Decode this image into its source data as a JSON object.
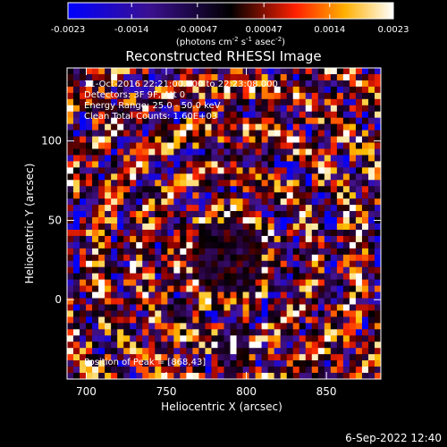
{
  "chart_data": {
    "type": "heatmap",
    "title": "Reconstructed RHESSI Image",
    "xlabel": "Heliocentric X (arcsec)",
    "ylabel": "Heliocentric Y (arcsec)",
    "xlim": [
      688,
      884
    ],
    "ylim": [
      -50,
      146
    ],
    "x_ticks": [
      "700",
      "750",
      "800",
      "850"
    ],
    "y_ticks": [
      "0",
      "50",
      "100"
    ],
    "x_tick_values": [
      700,
      750,
      800,
      850
    ],
    "y_tick_values": [
      0,
      50,
      100
    ],
    "colorbar": {
      "range": [
        -0.0023,
        0.0023
      ],
      "tick_labels": [
        "-0.0023",
        "-0.0014",
        "-0.00047",
        "0.00047",
        "0.0014",
        "0.0023"
      ],
      "tick_values": [
        -0.0023,
        -0.0014,
        -0.00047,
        0.00047,
        0.0014,
        0.0023
      ],
      "unit_label": "(photons cm",
      "unit_exp1": "-2",
      "unit_mid": " s",
      "unit_exp2": "-1",
      "unit_end": " asec",
      "unit_exp3": "-2",
      "unit_close": ")",
      "colormap": [
        "#0000ff",
        "#000000",
        "#ff0000",
        "#ffff00",
        "#ffffff"
      ]
    },
    "annotations": [
      "31-Oct-2016 22:21:00.000 to 22:23:08.000",
      "Detectors: 3F 9F, Att 0",
      "Energy Range: 25.0 - 50.0 keV",
      "Clean     Total Counts: 1.60E+03"
    ],
    "peak_label": "Position of Peak = [868,43]",
    "peak": [
      868,
      43
    ],
    "grid": false
  },
  "footer": {
    "date": "6-Sep-2022 12:40"
  }
}
